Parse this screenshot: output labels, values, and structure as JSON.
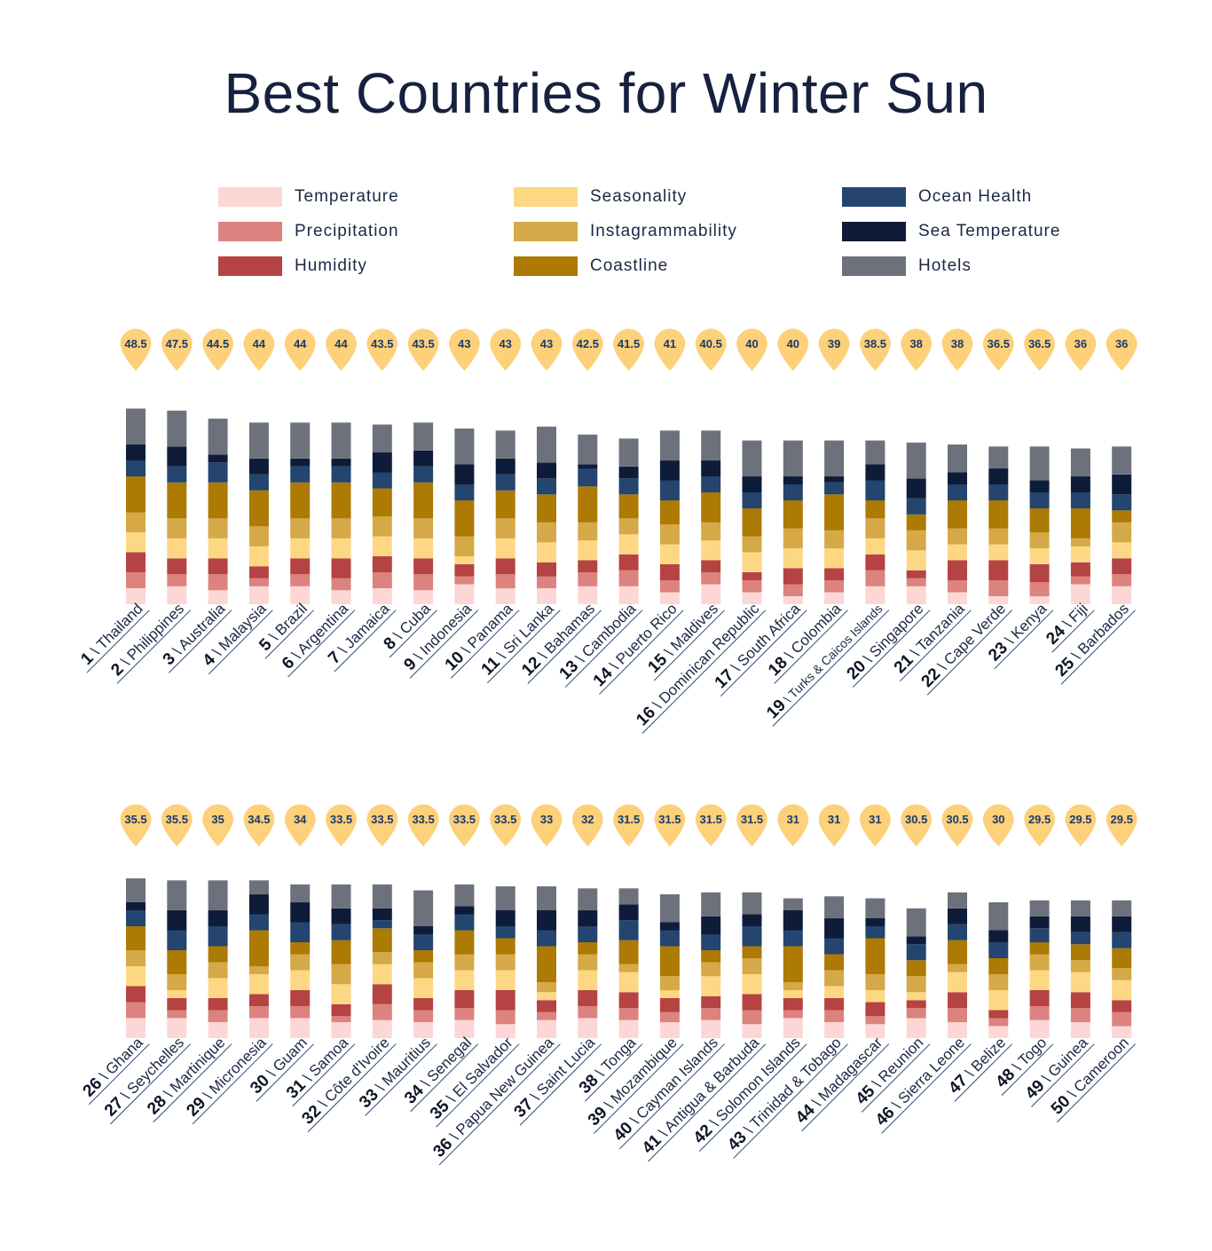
{
  "chart_data": {
    "type": "stacked-bar",
    "title": "Best Countries for Winter Sun",
    "legend_placement": "top",
    "series": [
      {
        "name": "Temperature",
        "color": "#fcd7d6"
      },
      {
        "name": "Precipitation",
        "color": "#dc8380"
      },
      {
        "name": "Humidity",
        "color": "#b64343"
      },
      {
        "name": "Seasonality",
        "color": "#fdd783"
      },
      {
        "name": "Instagrammability",
        "color": "#d5a947"
      },
      {
        "name": "Coastline",
        "color": "#ad7a03"
      },
      {
        "name": "Ocean Health",
        "color": "#23456f"
      },
      {
        "name": "Sea Temperature",
        "color": "#0f1c39"
      },
      {
        "name": "Hotels",
        "color": "#6d717c"
      }
    ],
    "countries": [
      {
        "rank": "1",
        "name": "Thailand",
        "score": "48.5",
        "values": [
          4,
          4,
          5,
          5,
          5,
          9,
          4,
          4,
          9
        ]
      },
      {
        "rank": "2",
        "name": "Philippines",
        "score": "47.5",
        "values": [
          4.5,
          3,
          4,
          5,
          5,
          9,
          4,
          5,
          9
        ]
      },
      {
        "rank": "3",
        "name": "Australia",
        "score": "44.5",
        "values": [
          3.5,
          4,
          4,
          5,
          5,
          9,
          5,
          2,
          9
        ]
      },
      {
        "rank": "4",
        "name": "Malaysia",
        "score": "44",
        "values": [
          4.5,
          2,
          3,
          5,
          5,
          9,
          4,
          4,
          9
        ]
      },
      {
        "rank": "5",
        "name": "Brazil",
        "score": "44",
        "values": [
          4.5,
          3,
          4,
          5,
          5,
          9,
          4,
          2,
          9
        ]
      },
      {
        "rank": "6",
        "name": "Argentina",
        "score": "44",
        "values": [
          3.5,
          3,
          5,
          5,
          5,
          9,
          4,
          2,
          9
        ]
      },
      {
        "rank": "7",
        "name": "Jamaica",
        "score": "43.5",
        "values": [
          4,
          4,
          4,
          5,
          5,
          7,
          4,
          5,
          7
        ]
      },
      {
        "rank": "8",
        "name": "Cuba",
        "score": "43.5",
        "values": [
          3.5,
          4,
          4,
          5,
          5,
          9,
          4,
          4,
          7
        ]
      },
      {
        "rank": "9",
        "name": "Indonesia",
        "score": "43",
        "values": [
          5,
          2,
          3,
          2,
          5,
          9,
          4,
          5,
          9
        ]
      },
      {
        "rank": "10",
        "name": "Panama",
        "score": "43",
        "values": [
          4,
          3.5,
          4,
          5,
          5,
          7,
          4,
          4,
          7
        ]
      },
      {
        "rank": "11",
        "name": "Sri Lanka",
        "score": "43",
        "values": [
          4,
          3,
          3.5,
          5,
          5,
          7,
          4,
          4,
          9
        ]
      },
      {
        "rank": "12",
        "name": "Bahamas",
        "score": "42.5",
        "values": [
          4.5,
          3.5,
          3,
          5,
          4.5,
          9,
          4.5,
          1,
          7.5
        ]
      },
      {
        "rank": "13",
        "name": "Cambodia",
        "score": "41.5",
        "values": [
          4.5,
          4,
          4,
          5,
          4,
          6,
          4,
          3,
          7
        ]
      },
      {
        "rank": "14",
        "name": "Puerto Rico",
        "score": "41",
        "values": [
          3,
          3,
          4,
          5,
          5,
          6,
          5,
          5,
          7.5
        ]
      },
      {
        "rank": "15",
        "name": "Maldives",
        "score": "40.5",
        "values": [
          5,
          3,
          3,
          5,
          4.5,
          7.5,
          4,
          4,
          7.5
        ]
      },
      {
        "rank": "16",
        "name": "Dominican Republic",
        "score": "40",
        "values": [
          3,
          3,
          2,
          5,
          4,
          7,
          4,
          4,
          9
        ]
      },
      {
        "rank": "17",
        "name": "South Africa",
        "score": "40",
        "values": [
          2,
          3,
          4,
          5,
          5,
          7,
          4,
          2,
          9
        ]
      },
      {
        "rank": "18",
        "name": "Colombia",
        "score": "39",
        "values": [
          3,
          3,
          3,
          5,
          4.5,
          9,
          3,
          1.5,
          9
        ]
      },
      {
        "rank": "19",
        "name": "Turks & Caicos Islands",
        "score": "38.5",
        "values": [
          4.5,
          4,
          4,
          4,
          5,
          4.5,
          5,
          4,
          6
        ]
      },
      {
        "rank": "20",
        "name": "Singapore",
        "score": "38",
        "values": [
          4.5,
          2,
          2,
          5,
          5,
          4,
          4,
          5,
          9
        ]
      },
      {
        "rank": "21",
        "name": "Tanzania",
        "score": "38",
        "values": [
          3,
          3,
          5,
          4,
          4,
          7,
          4,
          3,
          7
        ]
      },
      {
        "rank": "22",
        "name": "Cape Verde",
        "score": "36.5",
        "values": [
          2,
          4,
          5,
          4,
          4,
          7,
          4,
          4,
          5.5
        ]
      },
      {
        "rank": "23",
        "name": "Kenya",
        "score": "36.5",
        "values": [
          2,
          3.5,
          4.5,
          4,
          4,
          6,
          4,
          3,
          8.5
        ]
      },
      {
        "rank": "24",
        "name": "Fiji",
        "score": "36",
        "values": [
          5,
          2,
          3.5,
          4,
          2,
          7.5,
          4,
          4,
          7
        ]
      },
      {
        "rank": "25",
        "name": "Barbados",
        "score": "36",
        "values": [
          4.5,
          3,
          4,
          4,
          5,
          3,
          4,
          5,
          7
        ]
      },
      {
        "rank": "26",
        "name": "Ghana",
        "score": "35.5",
        "values": [
          5,
          4,
          4,
          5,
          4,
          6,
          4,
          2,
          6
        ]
      },
      {
        "rank": "27",
        "name": "Seychelles",
        "score": "35.5",
        "values": [
          5,
          2,
          3,
          2,
          4,
          6,
          5,
          5,
          7.5
        ]
      },
      {
        "rank": "28",
        "name": "Martinique",
        "score": "35",
        "values": [
          4,
          3,
          3,
          5,
          4,
          4,
          5,
          4,
          7.5
        ]
      },
      {
        "rank": "29",
        "name": "Micronesia",
        "score": "34.5",
        "values": [
          5,
          3,
          3,
          5,
          2,
          9,
          4,
          5,
          3.5
        ]
      },
      {
        "rank": "30",
        "name": "Guam",
        "score": "34",
        "values": [
          5,
          3,
          4,
          5,
          4,
          3,
          5,
          5,
          4.5
        ]
      },
      {
        "rank": "31",
        "name": "Samoa",
        "score": "33.5",
        "values": [
          4,
          1.5,
          3,
          5,
          5,
          6,
          4,
          4,
          6
        ]
      },
      {
        "rank": "32",
        "name": "Côte d'Ivoire",
        "score": "33.5",
        "values": [
          4.5,
          4,
          5,
          5,
          3,
          6,
          2,
          3,
          6
        ]
      },
      {
        "rank": "33",
        "name": "Mauritius",
        "score": "33.5",
        "values": [
          4,
          3,
          3,
          5,
          4,
          3,
          4,
          2,
          9
        ]
      },
      {
        "rank": "34",
        "name": "Senegal",
        "score": "33.5",
        "values": [
          4.5,
          3,
          4.5,
          5,
          4,
          6,
          4,
          2,
          5.5
        ]
      },
      {
        "rank": "35",
        "name": "El Salvador",
        "score": "33.5",
        "values": [
          3.5,
          3.5,
          5,
          5,
          4,
          4,
          3,
          4,
          6
        ]
      },
      {
        "rank": "36",
        "name": "Papua New Guinea",
        "score": "33",
        "values": [
          4.5,
          2,
          3,
          2,
          2.5,
          9,
          4,
          5,
          6
        ]
      },
      {
        "rank": "37",
        "name": "Saint Lucia",
        "score": "32",
        "values": [
          5,
          3,
          4,
          5,
          4,
          3,
          4,
          4,
          5.5
        ]
      },
      {
        "rank": "38",
        "name": "Tonga",
        "score": "31.5",
        "values": [
          4.5,
          3,
          4,
          5,
          2,
          6,
          5,
          4,
          4
        ]
      },
      {
        "rank": "39",
        "name": "Mozambique",
        "score": "31.5",
        "values": [
          4,
          2.5,
          3.5,
          2,
          3.5,
          7.5,
          4,
          2,
          7
        ]
      },
      {
        "rank": "40",
        "name": "Cayman Islands",
        "score": "31.5",
        "values": [
          4.5,
          3,
          3,
          5,
          3.5,
          3,
          4,
          4.5,
          6
        ]
      },
      {
        "rank": "41",
        "name": "Antigua & Barbuda",
        "score": "31.5",
        "values": [
          3.5,
          3.5,
          4,
          5,
          4,
          3,
          5,
          3,
          5.5
        ]
      },
      {
        "rank": "42",
        "name": "Solomon Islands",
        "score": "31",
        "values": [
          5,
          2,
          3,
          2,
          2,
          9,
          4,
          5,
          3
        ]
      },
      {
        "rank": "43",
        "name": "Trinidad & Tobago",
        "score": "31",
        "values": [
          4,
          3,
          3,
          3,
          4,
          4,
          4,
          5,
          5.5
        ]
      },
      {
        "rank": "44",
        "name": "Madagascar",
        "score": "31",
        "values": [
          3.5,
          2,
          3.5,
          3,
          4,
          9,
          3,
          2,
          5
        ]
      },
      {
        "rank": "45",
        "name": "Reunion",
        "score": "30.5",
        "values": [
          5,
          2.5,
          2,
          2,
          4,
          4,
          4,
          2,
          7
        ]
      },
      {
        "rank": "46",
        "name": "Sierra Leone",
        "score": "30.5",
        "values": [
          4,
          3.5,
          4,
          5,
          2,
          6,
          4,
          4,
          4
        ]
      },
      {
        "rank": "47",
        "name": "Belize",
        "score": "30",
        "values": [
          3,
          2,
          2,
          5,
          4,
          4,
          4,
          3,
          7
        ]
      },
      {
        "rank": "48",
        "name": "Togo",
        "score": "29.5",
        "values": [
          4.5,
          3.5,
          4,
          5,
          4,
          3,
          3.5,
          3,
          4
        ]
      },
      {
        "rank": "49",
        "name": "Guinea",
        "score": "29.5",
        "values": [
          4,
          3.5,
          4,
          5,
          3,
          4,
          3,
          4,
          4
        ]
      },
      {
        "rank": "50",
        "name": "Cameroon",
        "score": "29.5",
        "values": [
          3,
          3.5,
          3,
          5,
          3,
          5,
          4,
          4,
          4
        ]
      }
    ]
  }
}
